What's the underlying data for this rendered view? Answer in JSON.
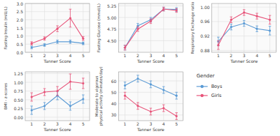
{
  "chart_data": [
    {
      "type": "line",
      "x": [
        1,
        2,
        3,
        4,
        5
      ],
      "xlim": [
        0.5,
        5.5
      ],
      "xticks": [
        1,
        2,
        3,
        4,
        5
      ],
      "xlabel": "Tanner Score",
      "ylabel": "Fasting Insulin (mIU/L)",
      "ylim": [
        0,
        3.0
      ],
      "yticks": [
        {
          "value": 0,
          "label": "0.0"
        },
        0.5,
        {
          "value": 1.0,
          "label": "1.0"
        },
        1.5,
        {
          "value": 2.0,
          "label": "2.0"
        },
        2.5,
        {
          "value": 3.0,
          "label": "3.0"
        }
      ],
      "grid": true,
      "marker": "circle",
      "legend": "right",
      "legend_title": "Gender",
      "series": [
        {
          "name": "Boys",
          "color": "#5B9BD5",
          "values": [
            0.3,
            0.45,
            0.65,
            0.65,
            0.55
          ],
          "errors": [
            0.08,
            0.08,
            0.1,
            0.1,
            0.08
          ]
        },
        {
          "name": "Girls",
          "color": "#E8547A",
          "values": [
            0.55,
            0.85,
            1.45,
            2.1,
            0.85
          ],
          "errors": [
            0.1,
            0.1,
            0.18,
            0.55,
            0.12
          ]
        }
      ]
    },
    {
      "type": "line",
      "x": [
        1,
        2,
        3,
        4,
        5
      ],
      "xlim": [
        0.5,
        5.5
      ],
      "xticks": [
        1,
        2,
        3,
        4,
        5
      ],
      "xlabel": "Tanner Score",
      "ylabel": "Fasting Glucose (mmol/L)",
      "ylim": [
        4.25,
        5.3
      ],
      "yticks": [
        {
          "value": 4.5,
          "label": "4.50"
        },
        4.75,
        {
          "value": 5.0,
          "label": "5.00"
        },
        5.25
      ],
      "grid": true,
      "marker": "circle",
      "series": [
        {
          "color": "#5B9BD5",
          "values": [
            4.35,
            4.82,
            4.95,
            5.18,
            5.17
          ],
          "errors": [
            0.05,
            0.05,
            0.05,
            0.04,
            0.04
          ]
        },
        {
          "color": "#E8547A",
          "values": [
            4.35,
            4.75,
            4.92,
            5.18,
            5.15
          ],
          "errors": [
            0.05,
            0.05,
            0.05,
            0.04,
            0.04
          ]
        }
      ]
    },
    {
      "type": "line",
      "x": [
        1,
        2,
        3,
        4,
        5
      ],
      "xlim": [
        0.5,
        5.5
      ],
      "xticks": [
        1,
        2,
        3,
        4,
        5
      ],
      "xlabel": "Tanner Score",
      "ylabel": "Respiratory Exchange ratio",
      "ylim": [
        0.875,
        1.01
      ],
      "yticks": [
        0.88,
        0.92,
        0.96,
        {
          "value": 1.0,
          "label": "1.00"
        }
      ],
      "grid": true,
      "marker": "circle",
      "series": [
        {
          "color": "#5B9BD5",
          "values": [
            0.905,
            0.945,
            0.955,
            0.94,
            0.935
          ],
          "errors": [
            0.012,
            0.008,
            0.008,
            0.008,
            0.012
          ]
        },
        {
          "color": "#E8547A",
          "values": [
            0.895,
            0.965,
            0.985,
            0.975,
            0.965
          ],
          "errors": [
            0.012,
            0.008,
            0.008,
            0.008,
            0.012
          ]
        }
      ]
    },
    {
      "type": "line",
      "x": [
        1,
        2,
        3,
        4,
        5
      ],
      "xlim": [
        0.5,
        5.5
      ],
      "xticks": [
        1,
        2,
        3,
        4,
        5
      ],
      "xlabel": "Tanner Score",
      "ylabel": "BMI - z-scores",
      "ylim": [
        -0.1,
        1.3
      ],
      "yticks": [
        {
          "value": 0.0,
          "label": "0.00"
        },
        0.25,
        {
          "value": 0.5,
          "label": "0.50"
        },
        0.75,
        {
          "value": 1.0,
          "label": "1.00"
        },
        1.25
      ],
      "grid": true,
      "marker": "circle",
      "series": [
        {
          "color": "#5B9BD5",
          "values": [
            0.2,
            0.32,
            0.62,
            0.32,
            0.52
          ],
          "errors": [
            0.12,
            0.1,
            0.12,
            0.12,
            0.12
          ]
        },
        {
          "color": "#E8547A",
          "values": [
            0.58,
            0.72,
            0.75,
            1.02,
            0.97
          ],
          "errors": [
            0.12,
            0.1,
            0.13,
            0.22,
            0.15
          ]
        }
      ]
    },
    {
      "type": "line",
      "x": [
        1,
        2,
        3,
        4,
        5
      ],
      "xlim": [
        0.5,
        5.5
      ],
      "xticks": [
        1,
        2,
        3,
        4,
        5
      ],
      "xlabel": "Tanner Score",
      "ylabel": "Moderate to vigorous\nphysical activity (minutes/day)",
      "ylim": [
        25,
        68
      ],
      "yticks": [
        30,
        40,
        50,
        60
      ],
      "grid": true,
      "marker": "circle",
      "series": [
        {
          "color": "#5B9BD5",
          "values": [
            56,
            62,
            57,
            52,
            47
          ],
          "errors": [
            3,
            3,
            3,
            3,
            3
          ]
        },
        {
          "color": "#E8547A",
          "values": [
            47,
            38,
            33,
            36,
            29
          ],
          "errors": [
            3,
            3,
            3,
            3,
            3
          ]
        }
      ]
    }
  ]
}
